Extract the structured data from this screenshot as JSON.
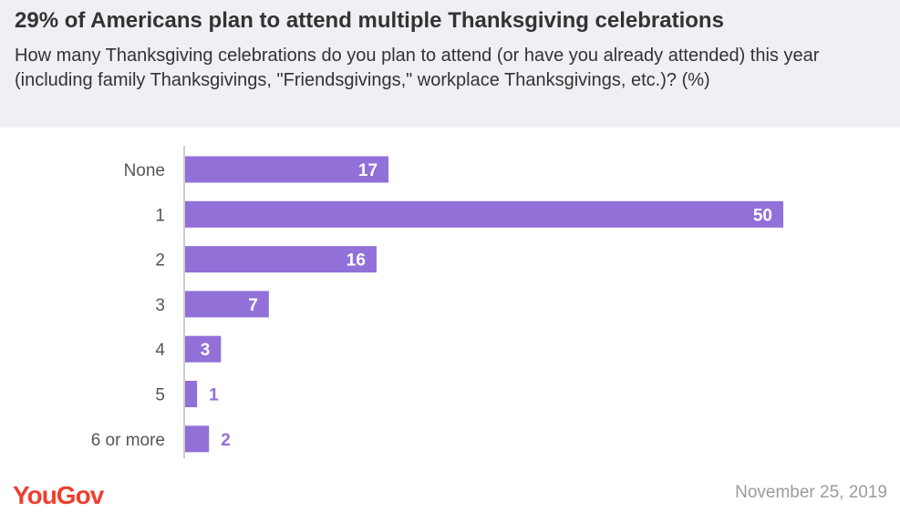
{
  "header": {
    "title": "29% of Americans plan to attend multiple Thanksgiving celebrations",
    "subtitle": "How many Thanksgiving celebrations do you plan to attend (or have you already attended) this year (including family Thanksgivings, \"Friendsgivings,\" workplace Thanksgivings, etc.)? (%)"
  },
  "chart_data": {
    "type": "bar",
    "orientation": "horizontal",
    "categories": [
      "None",
      "1",
      "2",
      "3",
      "4",
      "5",
      "6 or more"
    ],
    "values": [
      17,
      50,
      16,
      7,
      3,
      1,
      2
    ],
    "bar_color": "#9170d8"
  },
  "footer": {
    "brand": "YouGov",
    "date": "November 25, 2019"
  },
  "colors": {
    "header_bg": "#efeff5",
    "brand": "#ee3f2f"
  }
}
